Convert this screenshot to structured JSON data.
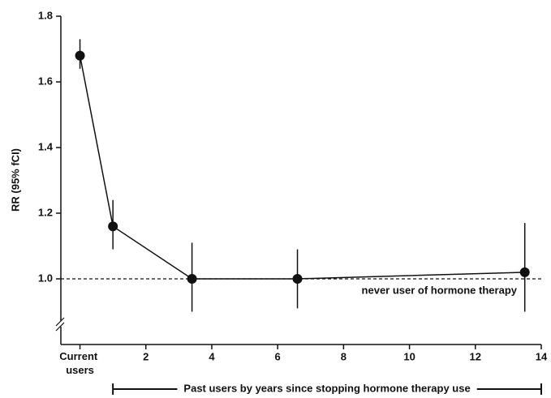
{
  "chart_data": {
    "type": "line",
    "y_label": "RR (95% fCI)",
    "x": [
      0,
      1,
      3.4,
      6.6,
      13.5
    ],
    "series": [
      {
        "values": [
          1.68,
          1.16,
          1.0,
          1.0,
          1.02
        ],
        "lower": [
          1.64,
          1.09,
          0.9,
          0.91,
          0.9
        ],
        "upper": [
          1.73,
          1.24,
          1.11,
          1.09,
          1.17
        ],
        "color": "#111111"
      }
    ],
    "xlim": [
      -0.58,
      14
    ],
    "xticks": [
      {
        "value": 0,
        "label": "Current users"
      },
      2,
      4,
      6,
      8,
      10,
      12,
      14
    ],
    "ylim": [
      0.8,
      1.8
    ],
    "yticks": [
      {
        "value": 1,
        "label": "1.0"
      },
      {
        "value": 1.2,
        "label": "1.2"
      },
      {
        "value": 1.4,
        "label": "1.4"
      },
      {
        "value": 1.6,
        "label": "1.6"
      },
      {
        "value": 1.8,
        "label": "1.8"
      }
    ],
    "reference_line": {
      "value": 1,
      "label": "never user of hormone therapy"
    },
    "bracket": {
      "from": 1,
      "to": 14,
      "label": "Past users by years since stopping hormone therapy use"
    }
  }
}
